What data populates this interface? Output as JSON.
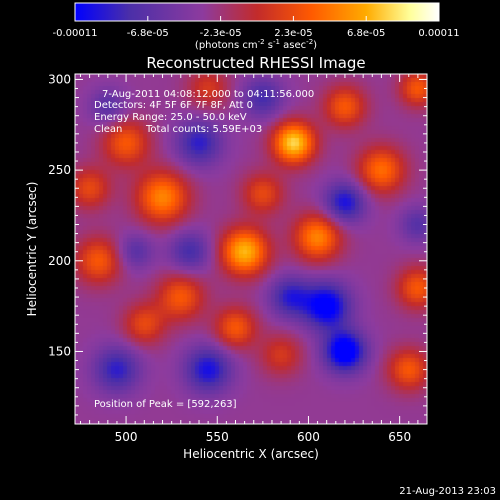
{
  "chart_data": {
    "type": "heatmap",
    "title": "Reconstructed RHESSI Image",
    "xlabel": "Heliocentric X (arcsec)",
    "ylabel": "Heliocentric Y (arcsec)",
    "xlim": [
      472,
      665
    ],
    "ylim": [
      110,
      303
    ],
    "x_ticks": [
      500,
      550,
      600,
      650
    ],
    "y_ticks": [
      150,
      200,
      250,
      300
    ],
    "colorbar": {
      "min": -0.00011,
      "max": 0.00011,
      "ticks": [
        "-0.00011",
        "-6.8e-05",
        "-2.3e-05",
        "2.3e-05",
        "6.8e-05",
        "0.00011"
      ],
      "units_label": "(photons cm",
      "units_sup1": "-2",
      "units_mid": " s",
      "units_sup2": "-1",
      "units_end": " asec",
      "units_sup3": "-2",
      "units_close": ")"
    },
    "annotations": {
      "time_range": "7-Aug-2011 04:08:12.000 to 04:11:56.000",
      "detectors": "Detectors: 4F 5F 6F 7F 8F, Att 0",
      "energy_range": "Energy Range: 25.0 - 50.0 keV",
      "clean_label": "Clean",
      "total_counts": "Total counts: 5.59E+03",
      "peak_position": "Position of Peak = [592,263]"
    },
    "sources": [
      {
        "x": 565,
        "y": 205,
        "amp": 0.0001,
        "sigma": 9
      },
      {
        "x": 592,
        "y": 265,
        "amp": 0.00011,
        "sigma": 8
      },
      {
        "x": 520,
        "y": 235,
        "amp": 8e-05,
        "sigma": 10
      },
      {
        "x": 500,
        "y": 265,
        "amp": 6e-05,
        "sigma": 9
      },
      {
        "x": 605,
        "y": 213,
        "amp": 8e-05,
        "sigma": 9
      },
      {
        "x": 640,
        "y": 250,
        "amp": 7e-05,
        "sigma": 9
      },
      {
        "x": 620,
        "y": 285,
        "amp": 6e-05,
        "sigma": 8
      },
      {
        "x": 485,
        "y": 200,
        "amp": 6e-05,
        "sigma": 9
      },
      {
        "x": 530,
        "y": 180,
        "amp": 6e-05,
        "sigma": 9
      },
      {
        "x": 560,
        "y": 163,
        "amp": 6e-05,
        "sigma": 8
      },
      {
        "x": 510,
        "y": 165,
        "amp": 5e-05,
        "sigma": 8
      },
      {
        "x": 660,
        "y": 185,
        "amp": 6e-05,
        "sigma": 8
      },
      {
        "x": 655,
        "y": 140,
        "amp": 6e-05,
        "sigma": 8
      },
      {
        "x": 585,
        "y": 148,
        "amp": 4e-05,
        "sigma": 8
      },
      {
        "x": 545,
        "y": 295,
        "amp": 4e-05,
        "sigma": 8
      },
      {
        "x": 660,
        "y": 295,
        "amp": 6e-05,
        "sigma": 7
      },
      {
        "x": 480,
        "y": 240,
        "amp": 5e-05,
        "sigma": 8
      },
      {
        "x": 575,
        "y": 237,
        "amp": 5e-05,
        "sigma": 8
      },
      {
        "x": 610,
        "y": 175,
        "amp": -9e-05,
        "sigma": 9
      },
      {
        "x": 620,
        "y": 150,
        "amp": -0.0001,
        "sigma": 8
      },
      {
        "x": 590,
        "y": 180,
        "amp": -6e-05,
        "sigma": 8
      },
      {
        "x": 545,
        "y": 140,
        "amp": -7e-05,
        "sigma": 9
      },
      {
        "x": 495,
        "y": 140,
        "amp": -6e-05,
        "sigma": 9
      },
      {
        "x": 540,
        "y": 265,
        "amp": -6e-05,
        "sigma": 9
      },
      {
        "x": 620,
        "y": 232,
        "amp": -7e-05,
        "sigma": 8
      },
      {
        "x": 535,
        "y": 205,
        "amp": -5e-05,
        "sigma": 8
      },
      {
        "x": 575,
        "y": 290,
        "amp": -5e-05,
        "sigma": 8
      },
      {
        "x": 490,
        "y": 285,
        "amp": -4e-05,
        "sigma": 7
      },
      {
        "x": 660,
        "y": 220,
        "amp": -4e-05,
        "sigma": 7
      },
      {
        "x": 505,
        "y": 205,
        "amp": -4e-05,
        "sigma": 7
      }
    ],
    "background": -3e-05,
    "grid": false,
    "colormap": [
      "#0000ff",
      "#4b2fa8",
      "#8d3b9e",
      "#c22b2b",
      "#ff5a00",
      "#ffab00",
      "#ffff9a",
      "#ffffff"
    ]
  },
  "footer": {
    "timestamp": "21-Aug-2013 23:03"
  }
}
